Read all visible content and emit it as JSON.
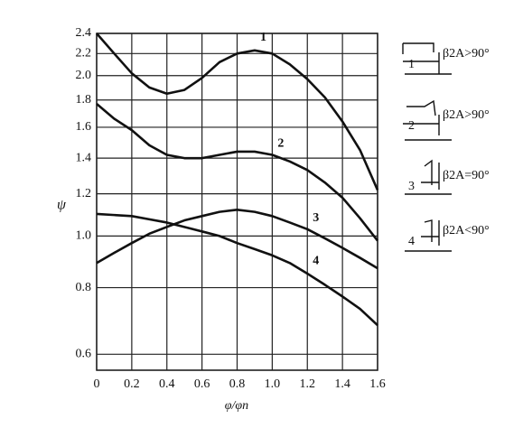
{
  "chart_data": {
    "type": "line",
    "x_label": "φ/φn",
    "y_label": "ψ",
    "x": [
      0,
      0.1,
      0.2,
      0.3,
      0.4,
      0.5,
      0.6,
      0.7,
      0.8,
      0.9,
      1.0,
      1.1,
      1.2,
      1.3,
      1.4,
      1.5,
      1.6
    ],
    "series": [
      {
        "name": "1",
        "color": "#111",
        "values": [
          2.4,
          2.2,
          2.02,
          1.9,
          1.85,
          1.88,
          1.98,
          2.12,
          2.2,
          2.23,
          2.2,
          2.1,
          1.97,
          1.82,
          1.64,
          1.45,
          1.22
        ]
      },
      {
        "name": "2",
        "color": "#111",
        "values": [
          1.77,
          1.66,
          1.58,
          1.48,
          1.42,
          1.4,
          1.4,
          1.42,
          1.44,
          1.44,
          1.42,
          1.38,
          1.33,
          1.26,
          1.18,
          1.08,
          0.98
        ]
      },
      {
        "name": "3",
        "color": "#111",
        "values": [
          0.89,
          0.93,
          0.97,
          1.01,
          1.04,
          1.07,
          1.09,
          1.11,
          1.12,
          1.11,
          1.09,
          1.06,
          1.03,
          0.99,
          0.95,
          0.91,
          0.87
        ]
      },
      {
        "name": "4",
        "color": "#111",
        "values": [
          1.1,
          1.095,
          1.09,
          1.075,
          1.06,
          1.04,
          1.02,
          1.0,
          0.97,
          0.945,
          0.92,
          0.89,
          0.85,
          0.81,
          0.77,
          0.73,
          0.68
        ]
      }
    ],
    "legend": [
      {
        "name": "1",
        "label": "β2A>90°"
      },
      {
        "name": "2",
        "label": "β2A>90°"
      },
      {
        "name": "3",
        "label": "β2A=90°"
      },
      {
        "name": "4",
        "label": "β2A<90°"
      }
    ],
    "xlim": [
      0,
      1.6
    ],
    "xticks": [
      0,
      {
        "value": 0.2,
        "label": "0.2"
      },
      {
        "value": 0.4,
        "label": "0.4"
      },
      {
        "value": 0.6,
        "label": "0.6"
      },
      {
        "value": 0.8,
        "label": "0.8"
      },
      {
        "value": 1.0,
        "label": "1.0"
      },
      {
        "value": 1.2,
        "label": "1.2"
      },
      {
        "value": 1.4,
        "label": "1.4"
      },
      {
        "value": 1.6,
        "label": "1.6"
      }
    ],
    "ylim": [
      0.56,
      2.4
    ],
    "yticks": [
      {
        "value": 0.6,
        "label": "0.6"
      },
      {
        "value": 0.8,
        "label": "0.8"
      },
      {
        "value": 1.0,
        "label": "1.0"
      },
      {
        "value": 1.2,
        "label": "1.2"
      },
      {
        "value": 1.4,
        "label": "1.4"
      },
      {
        "value": 1.6,
        "label": "1.6"
      },
      {
        "value": 1.8,
        "label": "1.8"
      },
      {
        "value": 2.0,
        "label": "2.0"
      },
      {
        "value": 2.2,
        "label": "2.2"
      },
      {
        "value": 2.4,
        "label": "2.4"
      }
    ],
    "log_y": true,
    "grid": true
  }
}
